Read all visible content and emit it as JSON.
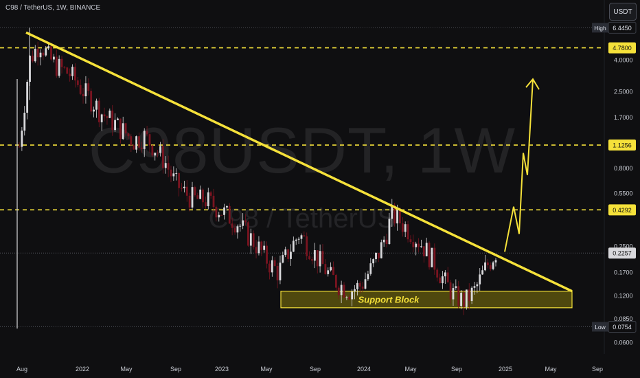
{
  "header": {
    "title": "C98 / TetherUS, 1W, BINANCE"
  },
  "toolbar": {
    "quote_label": "USDT"
  },
  "watermark": {
    "ticker": "C98USDT, 1W",
    "pair": "C98 / TetherUS"
  },
  "colors": {
    "background": "#0f0f11",
    "trendline": "#f5e13a",
    "level": "#f5e13a",
    "support_fill": "#5a520e",
    "candle_up": "#d9d9dc",
    "candle_down": "#7a1420",
    "axis_text": "#c9ccd4"
  },
  "chart_data": {
    "type": "candlestick",
    "title": "C98 / TetherUS, 1W, BINANCE",
    "y_scale": "log",
    "y_tick_labels": [
      "6.4450",
      "4.0000",
      "2.5000",
      "1.7000",
      "0.8000",
      "0.5500",
      "0.2500",
      "0.1700",
      "0.1200",
      "0.0850",
      "0.0600"
    ],
    "x_tick_labels": [
      "Aug",
      "2022",
      "May",
      "Sep",
      "2023",
      "May",
      "Sep",
      "2024",
      "May",
      "Sep",
      "2025",
      "May",
      "Sep"
    ],
    "price_labels": [
      {
        "label": "High",
        "value": "6.4450"
      },
      {
        "label": "",
        "value": "4.7800"
      },
      {
        "label": "",
        "value": "1.1256"
      },
      {
        "label": "",
        "value": "0.4292"
      },
      {
        "label": "",
        "value": "0.2257"
      },
      {
        "label": "Low",
        "value": "0.0754"
      }
    ],
    "horizontal_levels": [
      4.78,
      1.1256,
      0.4292
    ],
    "current_price": 0.2257,
    "support_block": {
      "label": "Support Block",
      "low": 0.1,
      "high": 0.128
    },
    "trendline": {
      "from": {
        "date": "2021-08",
        "price": 6.0
      },
      "to": {
        "date": "2025-07",
        "price": 0.128
      }
    },
    "projection": [
      0.23,
      0.45,
      0.3,
      1.0,
      0.72,
      3.0
    ],
    "weekly_closes_approx": [
      1.1,
      4.0,
      5.2,
      4.0,
      3.5,
      3.2,
      2.6,
      2.2,
      1.8,
      1.6,
      1.4,
      1.2,
      1.3,
      1.1,
      0.9,
      0.65,
      0.55,
      0.5,
      0.5,
      0.45,
      0.4,
      0.36,
      0.3,
      0.25,
      0.2,
      0.17,
      0.23,
      0.3,
      0.25,
      0.2,
      0.16,
      0.14,
      0.13,
      0.14,
      0.18,
      0.25,
      0.4,
      0.35,
      0.3,
      0.25,
      0.2,
      0.15,
      0.12,
      0.11,
      0.13,
      0.18,
      0.23
    ]
  }
}
